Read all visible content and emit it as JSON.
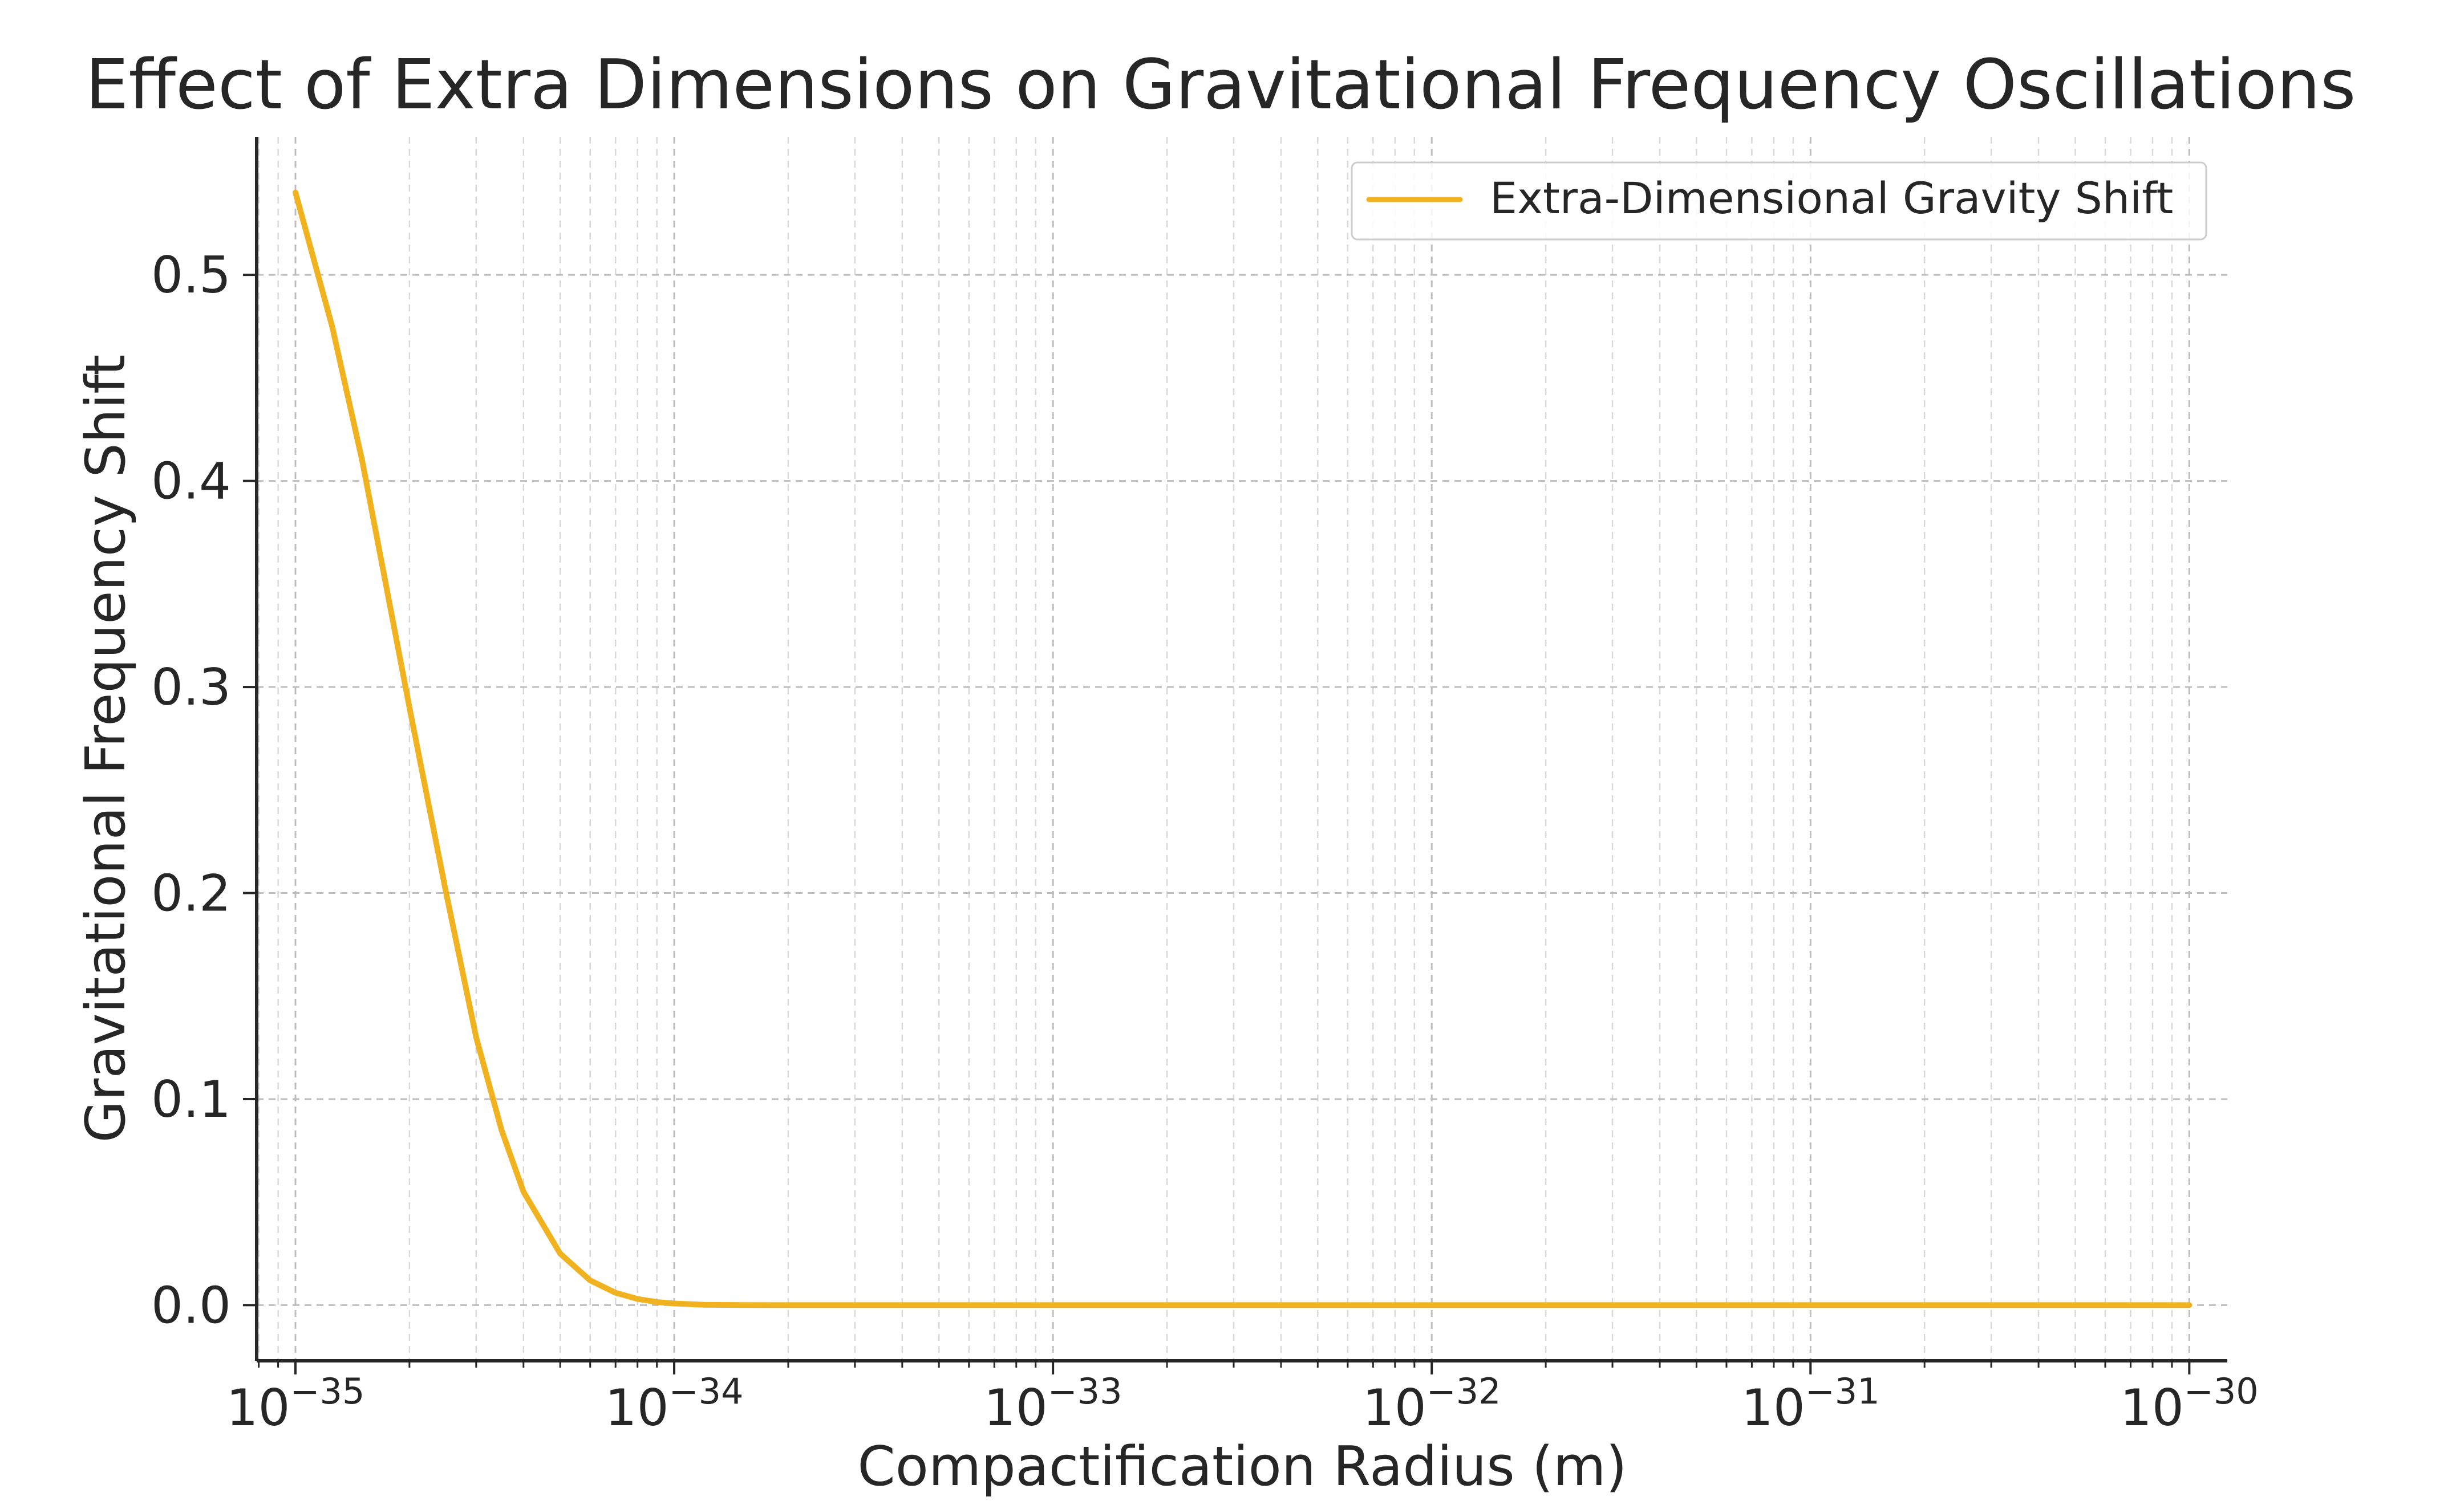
{
  "chart_data": {
    "type": "line",
    "title": "Effect of Extra Dimensions on Gravitational Frequency Oscillations",
    "xlabel": "Compactification Radius (m)",
    "ylabel": "Gravitational Frequency Shift",
    "xscale": "log",
    "xlim": [
      7.9e-36,
      1.26e-30
    ],
    "ylim": [
      -0.027,
      0.567
    ],
    "x_ticks": [
      {
        "value": 1e-35,
        "base": "10",
        "exp": "−35"
      },
      {
        "value": 1e-34,
        "base": "10",
        "exp": "−34"
      },
      {
        "value": 1e-33,
        "base": "10",
        "exp": "−33"
      },
      {
        "value": 1e-32,
        "base": "10",
        "exp": "−32"
      },
      {
        "value": 1e-31,
        "base": "10",
        "exp": "−31"
      },
      {
        "value": 1e-30,
        "base": "10",
        "exp": "−30"
      }
    ],
    "y_ticks": [
      {
        "value": 0.0,
        "label": "0.0"
      },
      {
        "value": 0.1,
        "label": "0.1"
      },
      {
        "value": 0.2,
        "label": "0.2"
      },
      {
        "value": 0.3,
        "label": "0.3"
      },
      {
        "value": 0.4,
        "label": "0.4"
      },
      {
        "value": 0.5,
        "label": "0.5"
      }
    ],
    "grid": true,
    "legend_position": "top-right",
    "series": [
      {
        "name": "Extra-Dimensional Gravity Shift",
        "color": "#f0b21f",
        "x": [
          1e-35,
          1.25e-35,
          1.5e-35,
          2e-35,
          2.5e-35,
          3e-35,
          3.5e-35,
          4e-35,
          5e-35,
          6e-35,
          7e-35,
          8e-35,
          9e-35,
          1e-34,
          1.2e-34,
          1.5e-34,
          2e-34,
          5e-34,
          1e-33,
          1e-32,
          1e-31,
          1e-30
        ],
        "y": [
          0.54,
          0.475,
          0.41,
          0.29,
          0.2,
          0.13,
          0.085,
          0.055,
          0.025,
          0.012,
          0.006,
          0.003,
          0.0015,
          0.0008,
          0.0002,
          5e-05,
          0.0,
          0.0,
          0.0,
          0.0,
          0.0,
          0.0
        ]
      }
    ]
  }
}
